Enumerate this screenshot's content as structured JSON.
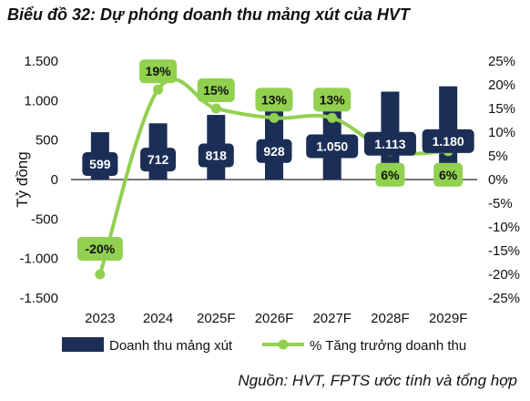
{
  "title": "Biểu đồ 32: Dự phóng doanh thu mảng xút của HVT",
  "source": "Nguồn: HVT, FPTS ước tính và tổng hợp",
  "chart_data": {
    "type": "bar",
    "categories": [
      "2023",
      "2024",
      "2025F",
      "2026F",
      "2027F",
      "2028F",
      "2029F"
    ],
    "series": [
      {
        "name": "Doanh thu mảng xút",
        "type": "bar",
        "axis": "left",
        "values": [
          599,
          712,
          818,
          928,
          1050,
          1113,
          1180
        ],
        "labels": [
          "599",
          "712",
          "818",
          "928",
          "1.050",
          "1.113",
          "1.180"
        ],
        "color": "#1b2e55"
      },
      {
        "name": "% Tăng trưởng doanh thu",
        "type": "line",
        "axis": "right",
        "values": [
          -20,
          19,
          15,
          13,
          13,
          6,
          6
        ],
        "labels": [
          "-20%",
          "19%",
          "15%",
          "13%",
          "13%",
          "6%",
          "6%"
        ],
        "color": "#92d050"
      }
    ],
    "ylabel": "Tỷ đồng",
    "ylim": [
      -1500,
      1500
    ],
    "yticks": [
      -1500,
      -1000,
      -500,
      0,
      500,
      1000,
      1500
    ],
    "ytick_labels": [
      "-1.500",
      "-1.000",
      "-500",
      "0",
      "500",
      "1.000",
      "1.500"
    ],
    "y2lim": [
      -25,
      25
    ],
    "y2ticks": [
      -25,
      -20,
      -15,
      -10,
      -5,
      0,
      5,
      10,
      15,
      20,
      25
    ],
    "y2tick_labels": [
      "-25%",
      "-20%",
      "-15%",
      "-10%",
      "-5%",
      "0%",
      "5%",
      "10%",
      "15%",
      "20%",
      "25%"
    ],
    "grid": false,
    "legend": "bottom"
  }
}
